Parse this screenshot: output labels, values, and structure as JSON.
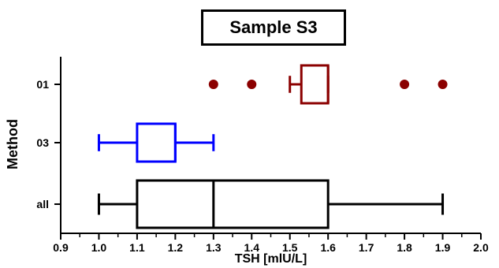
{
  "chart_data": {
    "type": "box",
    "title": "Sample S3",
    "xlabel": "TSH [mlU/L]",
    "ylabel": "Method",
    "xlim": [
      0.9,
      2.0
    ],
    "xticks": [
      "0.9",
      "1.0",
      "1.1",
      "1.2",
      "1.3",
      "1.4",
      "1.5",
      "1.6",
      "1.7",
      "1.8",
      "1.9",
      "2.0"
    ],
    "categories": [
      "01",
      "03",
      "all"
    ],
    "series": [
      {
        "category": "01",
        "color": "#8b0000",
        "whisker_low": 1.5,
        "q1": 1.53,
        "median": 1.6,
        "q3": 1.6,
        "whisker_high": 1.6,
        "outliers": [
          1.3,
          1.4,
          1.8,
          1.9
        ]
      },
      {
        "category": "03",
        "color": "#0000ff",
        "whisker_low": 1.0,
        "q1": 1.1,
        "median": 1.2,
        "q3": 1.2,
        "whisker_high": 1.3,
        "outliers": []
      },
      {
        "category": "all",
        "color": "#000000",
        "whisker_low": 1.0,
        "q1": 1.1,
        "median": 1.3,
        "q3": 1.6,
        "whisker_high": 1.9,
        "outliers": []
      }
    ],
    "grid": false,
    "legend": "none"
  }
}
